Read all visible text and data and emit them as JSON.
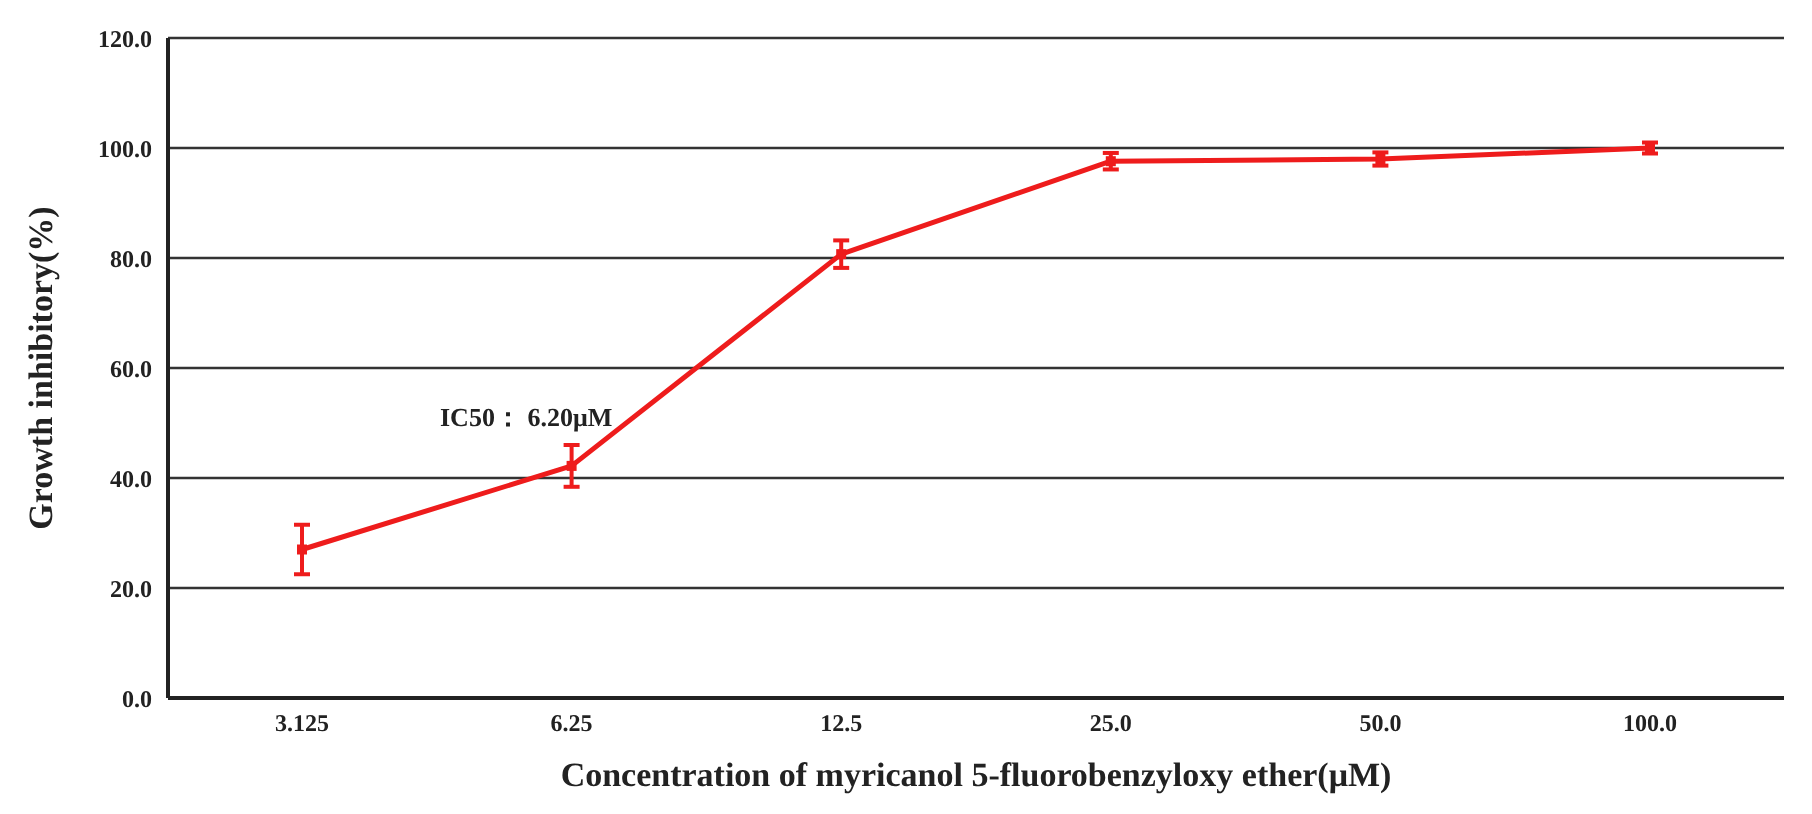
{
  "chart_data": {
    "type": "line",
    "xlabel": "Concentration of  myricanol 5-fluorobenzyloxy ether(μM)",
    "ylabel": "Growth inhibitory(%)",
    "categories": [
      "3.125",
      "6.25",
      "12.5",
      "25.0",
      "50.0",
      "100.0"
    ],
    "series": [
      {
        "color": "#ee1c1c",
        "values": [
          27.0,
          42.2,
          80.7,
          97.6,
          98.0,
          100.0
        ],
        "errors": [
          4.5,
          3.8,
          2.5,
          1.5,
          1.2,
          1.0
        ]
      }
    ],
    "ylim": [
      0,
      120
    ],
    "yticks": [
      {
        "value": 0,
        "label": "0.0"
      },
      {
        "value": 20,
        "label": "20.0"
      },
      {
        "value": 40,
        "label": "40.0"
      },
      {
        "value": 60,
        "label": "60.0"
      },
      {
        "value": 80,
        "label": "80.0"
      },
      {
        "value": 100,
        "label": "100.0"
      },
      {
        "value": 120,
        "label": "120.0"
      }
    ],
    "grid": "y",
    "marker": "square",
    "line_style": "solid",
    "annotations": [
      "IC50：  6.20μM"
    ]
  }
}
